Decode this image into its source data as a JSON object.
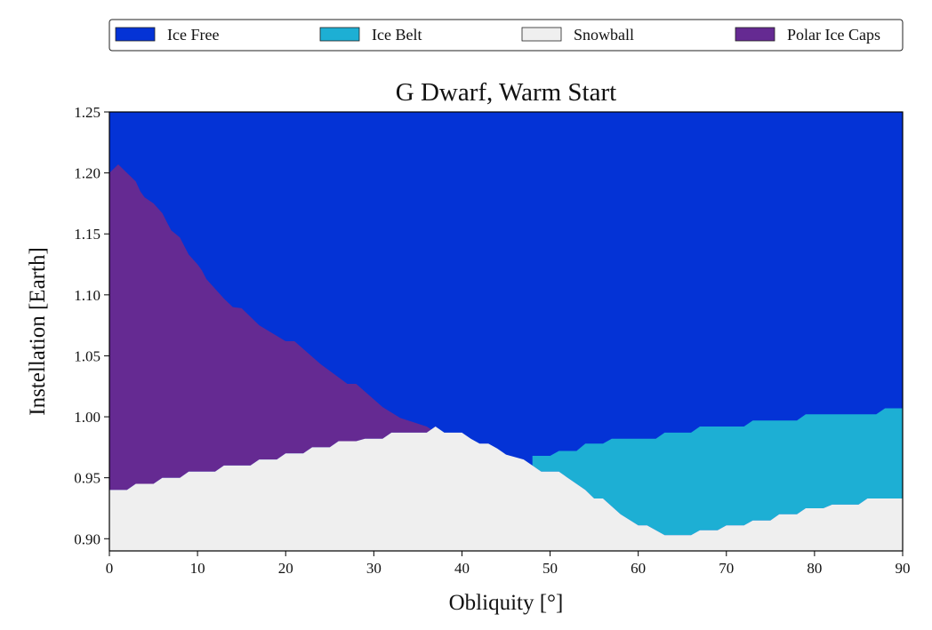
{
  "chart_data": {
    "type": "area",
    "title": "G Dwarf, Warm Start",
    "xlabel": "Obliquity [°]",
    "ylabel": "Instellation [Earth]",
    "xlim": [
      0,
      90
    ],
    "ylim": [
      0.89,
      1.25
    ],
    "xticks": [
      "0",
      "10",
      "20",
      "30",
      "40",
      "50",
      "60",
      "70",
      "80",
      "90"
    ],
    "yticks": [
      "0.90",
      "0.95",
      "1.00",
      "1.05",
      "1.10",
      "1.15",
      "1.20",
      "1.25"
    ],
    "grid": false,
    "legend_position": "top",
    "series": [
      {
        "name": "Ice Free",
        "color": "#0433D6"
      },
      {
        "name": "Ice Belt",
        "color": "#1DAFD4"
      },
      {
        "name": "Snowball",
        "color": "#EFEFEF"
      },
      {
        "name": "Polar Ice Caps",
        "color": "#652A92"
      }
    ],
    "regions": {
      "snowball_upper": [
        [
          0,
          0.94
        ],
        [
          2,
          0.94
        ],
        [
          3,
          0.945
        ],
        [
          5,
          0.945
        ],
        [
          6,
          0.95
        ],
        [
          8,
          0.95
        ],
        [
          9,
          0.955
        ],
        [
          12,
          0.955
        ],
        [
          13,
          0.96
        ],
        [
          16,
          0.96
        ],
        [
          17,
          0.965
        ],
        [
          19,
          0.965
        ],
        [
          20,
          0.97
        ],
        [
          22,
          0.97
        ],
        [
          23,
          0.975
        ],
        [
          25,
          0.975
        ],
        [
          26,
          0.98
        ],
        [
          28,
          0.98
        ],
        [
          29,
          0.982
        ],
        [
          31,
          0.982
        ],
        [
          32,
          0.987
        ],
        [
          36,
          0.987
        ],
        [
          37,
          0.992
        ],
        [
          38,
          0.987
        ],
        [
          40,
          0.987
        ],
        [
          41,
          0.982
        ],
        [
          42,
          0.978
        ],
        [
          43,
          0.978
        ],
        [
          44,
          0.974
        ],
        [
          45,
          0.969
        ],
        [
          47,
          0.965
        ],
        [
          48,
          0.96
        ],
        [
          49,
          0.955
        ],
        [
          51,
          0.955
        ],
        [
          52,
          0.95
        ],
        [
          54,
          0.94
        ],
        [
          55,
          0.933
        ],
        [
          56,
          0.933
        ],
        [
          58,
          0.92
        ],
        [
          60,
          0.911
        ],
        [
          61,
          0.911
        ],
        [
          63,
          0.903
        ],
        [
          66,
          0.903
        ],
        [
          67,
          0.907
        ],
        [
          69,
          0.907
        ],
        [
          70,
          0.911
        ],
        [
          72,
          0.911
        ],
        [
          73,
          0.915
        ],
        [
          75,
          0.915
        ],
        [
          76,
          0.92
        ],
        [
          78,
          0.92
        ],
        [
          79,
          0.925
        ],
        [
          81,
          0.925
        ],
        [
          82,
          0.928
        ],
        [
          85,
          0.928
        ],
        [
          86,
          0.933
        ],
        [
          90,
          0.933
        ]
      ],
      "polar_caps_upper": [
        [
          0,
          1.2
        ],
        [
          1,
          1.207
        ],
        [
          2,
          1.2
        ],
        [
          3,
          1.193
        ],
        [
          3.5,
          1.185
        ],
        [
          4,
          1.18
        ],
        [
          5,
          1.175
        ],
        [
          6,
          1.167
        ],
        [
          6.5,
          1.16
        ],
        [
          7,
          1.153
        ],
        [
          8,
          1.147
        ],
        [
          8.5,
          1.14
        ],
        [
          9,
          1.133
        ],
        [
          10,
          1.125
        ],
        [
          10.5,
          1.12
        ],
        [
          11,
          1.113
        ],
        [
          12,
          1.105
        ],
        [
          13,
          1.097
        ],
        [
          14,
          1.09
        ],
        [
          15,
          1.089
        ],
        [
          17,
          1.075
        ],
        [
          20,
          1.062
        ],
        [
          21,
          1.062
        ],
        [
          24,
          1.043
        ],
        [
          27,
          1.027
        ],
        [
          28,
          1.027
        ],
        [
          31,
          1.008
        ],
        [
          33,
          0.999
        ],
        [
          36,
          0.992
        ],
        [
          37.5,
          0.985
        ]
      ],
      "ice_belt": {
        "upper": [
          [
            48,
            0.968
          ],
          [
            50,
            0.968
          ],
          [
            51,
            0.972
          ],
          [
            53,
            0.972
          ],
          [
            54,
            0.978
          ],
          [
            56,
            0.978
          ],
          [
            57,
            0.982
          ],
          [
            62,
            0.982
          ],
          [
            63,
            0.987
          ],
          [
            66,
            0.987
          ],
          [
            67,
            0.992
          ],
          [
            72,
            0.992
          ],
          [
            73,
            0.997
          ],
          [
            78,
            0.997
          ],
          [
            79,
            1.002
          ],
          [
            87,
            1.002
          ],
          [
            88,
            1.007
          ],
          [
            90,
            1.007
          ]
        ]
      }
    }
  }
}
